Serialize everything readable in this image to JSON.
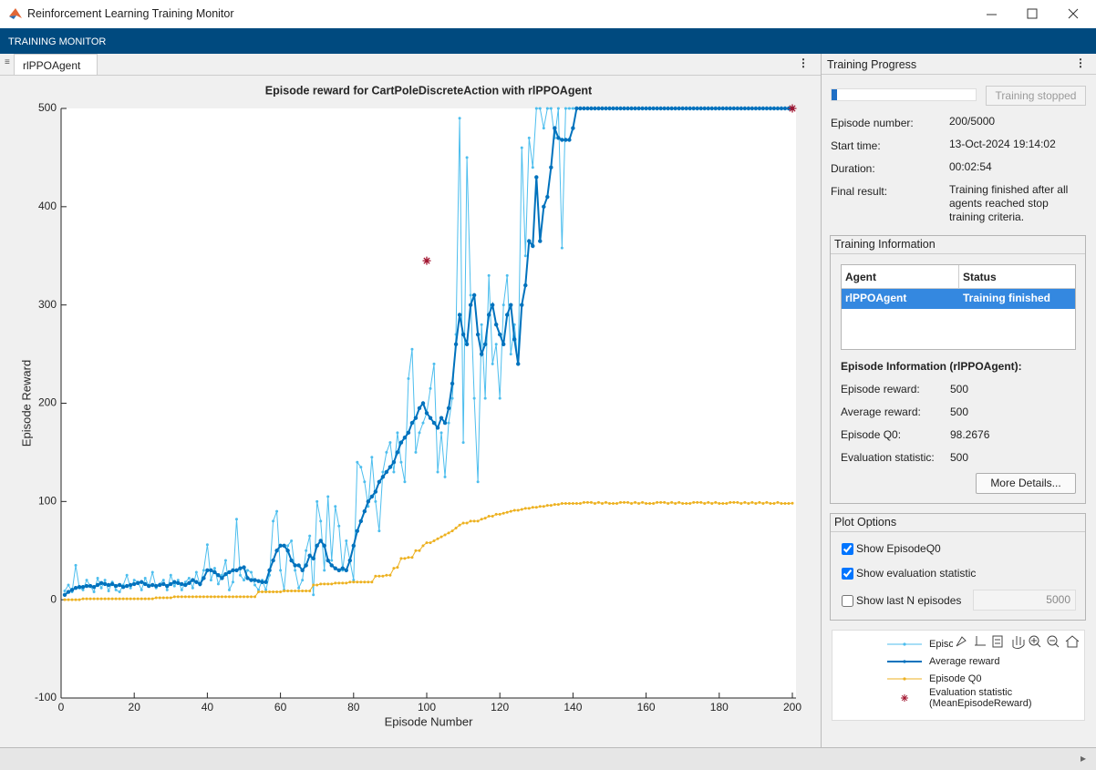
{
  "window": {
    "title": "Reinforcement Learning Training Monitor",
    "ribbon": "TRAINING MONITOR",
    "tab": "rlPPOAgent",
    "panel_title": "Training Progress",
    "status_button": "Training stopped",
    "progress": [
      {
        "label": "Episode number:",
        "value": "200/5000"
      },
      {
        "label": "Start time:",
        "value": "13-Oct-2024 19:14:02"
      },
      {
        "label": "Duration:",
        "value": "00:02:54"
      },
      {
        "label": "Final result:",
        "value": "Training finished after all agents reached stop training criteria."
      }
    ],
    "training_information": {
      "title": "Training Information",
      "columns": [
        "Agent",
        "Status"
      ],
      "rows": [
        [
          "rlPPOAgent",
          "Training finished"
        ]
      ]
    },
    "episode_information": {
      "title": "Episode Information (rlPPOAgent):",
      "fields": [
        {
          "label": "Episode reward:",
          "value": 500
        },
        {
          "label": "Average reward:",
          "value": 500
        },
        {
          "label": "Episode Q0:",
          "value": 98.2676
        },
        {
          "label": "Evaluation statistic:",
          "value": 500
        }
      ]
    },
    "more_details": "More Details...",
    "plot_options": {
      "title": "Plot Options",
      "options": [
        {
          "label": "Show EpisodeQ0",
          "checked": true
        },
        {
          "label": "Show evaluation statistic",
          "checked": true
        },
        {
          "label": "Show last N episodes",
          "checked": false
        }
      ],
      "last_n": 5000
    }
  },
  "chart_data": {
    "type": "line",
    "title": "Episode reward for CartPoleDiscreteAction with rlPPOAgent",
    "xlabel": "Episode Number",
    "ylabel": "Episode Reward",
    "xlim": [
      0,
      201
    ],
    "ylim": [
      -100,
      500
    ],
    "xticks": [
      0,
      20,
      40,
      60,
      80,
      100,
      120,
      140,
      160,
      180,
      200
    ],
    "yticks": [
      -100,
      0,
      100,
      200,
      300,
      400,
      500
    ],
    "x": [
      1,
      2,
      3,
      4,
      5,
      6,
      7,
      8,
      9,
      10,
      11,
      12,
      13,
      14,
      15,
      16,
      17,
      18,
      19,
      20,
      21,
      22,
      23,
      24,
      25,
      26,
      27,
      28,
      29,
      30,
      31,
      32,
      33,
      34,
      35,
      36,
      37,
      38,
      39,
      40,
      41,
      42,
      43,
      44,
      45,
      46,
      47,
      48,
      49,
      50,
      51,
      52,
      53,
      54,
      55,
      56,
      57,
      58,
      59,
      60,
      61,
      62,
      63,
      64,
      65,
      66,
      67,
      68,
      69,
      70,
      71,
      72,
      73,
      74,
      75,
      76,
      77,
      78,
      79,
      80,
      81,
      82,
      83,
      84,
      85,
      86,
      87,
      88,
      89,
      90,
      91,
      92,
      93,
      94,
      95,
      96,
      97,
      98,
      99,
      100,
      101,
      102,
      103,
      104,
      105,
      106,
      107,
      108,
      109,
      110,
      111,
      112,
      113,
      114,
      115,
      116,
      117,
      118,
      119,
      120,
      121,
      122,
      123,
      124,
      125,
      126,
      127,
      128,
      129,
      130,
      131,
      132,
      133,
      134,
      135,
      136,
      137,
      138,
      139,
      140,
      141,
      142,
      143,
      144,
      145,
      146,
      147,
      148,
      149,
      150,
      151,
      152,
      153,
      154,
      155,
      156,
      157,
      158,
      159,
      160,
      161,
      162,
      163,
      164,
      165,
      166,
      167,
      168,
      169,
      170,
      171,
      172,
      173,
      174,
      175,
      176,
      177,
      178,
      179,
      180,
      181,
      182,
      183,
      184,
      185,
      186,
      187,
      188,
      189,
      190,
      191,
      192,
      193,
      194,
      195,
      196,
      197,
      198,
      199,
      200
    ],
    "series": [
      {
        "name": "Episode reward",
        "color": "#4DBEEE",
        "line": true,
        "line_width": 1,
        "marker": "dot",
        "values": [
          9,
          15,
          8,
          35,
          12,
          10,
          20,
          14,
          8,
          22,
          12,
          20,
          9,
          18,
          10,
          8,
          15,
          25,
          12,
          20,
          18,
          10,
          22,
          14,
          28,
          12,
          16,
          20,
          10,
          25,
          14,
          20,
          10,
          18,
          22,
          12,
          28,
          15,
          30,
          56,
          20,
          32,
          16,
          25,
          40,
          10,
          18,
          82,
          25,
          20,
          30,
          28,
          15,
          10,
          20,
          10,
          25,
          80,
          90,
          30,
          10,
          55,
          60,
          30,
          12,
          20,
          50,
          65,
          5,
          100,
          80,
          30,
          105,
          40,
          95,
          75,
          30,
          60,
          40,
          20,
          140,
          135,
          120,
          95,
          145,
          100,
          70,
          130,
          150,
          160,
          130,
          170,
          140,
          120,
          225,
          255,
          150,
          170,
          180,
          190,
          215,
          240,
          130,
          170,
          125,
          180,
          205,
          270,
          490,
          160,
          450,
          310,
          205,
          120,
          280,
          205,
          330,
          240,
          260,
          205,
          300,
          330,
          250,
          280,
          240,
          460,
          350,
          470,
          440,
          500,
          500,
          480,
          500,
          500,
          470,
          500,
          358,
          500,
          500,
          500,
          500,
          500,
          500,
          500,
          500,
          500,
          500,
          500,
          500,
          500,
          500,
          500,
          500,
          500,
          500,
          500,
          500,
          500,
          500,
          500,
          500,
          500,
          500,
          500,
          500,
          500,
          500,
          500,
          500,
          500,
          500,
          500,
          500,
          500,
          500,
          500,
          500,
          500,
          500,
          500,
          500,
          500,
          500,
          500,
          500,
          500,
          500,
          500,
          500,
          500,
          500,
          500,
          500,
          500,
          500,
          500,
          500,
          500,
          500,
          500
        ]
      },
      {
        "name": "Average reward",
        "color": "#0072BD",
        "line": true,
        "line_width": 2,
        "marker": "dot",
        "values": [
          5,
          8,
          10,
          12,
          13,
          13,
          14,
          14,
          13,
          15,
          17,
          16,
          15,
          16,
          14,
          15,
          13,
          14,
          15,
          16,
          17,
          18,
          16,
          14,
          15,
          14,
          15,
          16,
          14,
          16,
          18,
          17,
          16,
          15,
          17,
          20,
          18,
          16,
          22,
          30,
          30,
          28,
          25,
          22,
          26,
          28,
          30,
          30,
          32,
          33,
          22,
          20,
          20,
          19,
          18,
          18,
          30,
          40,
          50,
          55,
          55,
          50,
          40,
          35,
          35,
          30,
          35,
          45,
          42,
          55,
          60,
          55,
          40,
          35,
          32,
          30,
          32,
          30,
          40,
          55,
          70,
          80,
          90,
          100,
          105,
          110,
          120,
          125,
          130,
          135,
          140,
          150,
          160,
          165,
          170,
          180,
          185,
          195,
          200,
          190,
          185,
          180,
          175,
          185,
          180,
          195,
          220,
          260,
          290,
          270,
          260,
          300,
          310,
          270,
          250,
          260,
          290,
          300,
          280,
          270,
          260,
          290,
          300,
          265,
          240,
          300,
          320,
          365,
          360,
          430,
          365,
          400,
          410,
          440,
          480,
          470,
          468,
          468,
          468,
          480,
          500,
          500,
          500,
          500,
          500,
          500,
          500,
          500,
          500,
          500,
          500,
          500,
          500,
          500,
          500,
          500,
          500,
          500,
          500,
          500,
          500,
          500,
          500,
          500,
          500,
          500,
          500,
          500,
          500,
          500,
          500,
          500,
          500,
          500,
          500,
          500,
          500,
          500,
          500,
          500,
          500,
          500,
          500,
          500,
          500,
          500,
          500,
          500,
          500,
          500,
          500,
          500,
          500,
          500,
          500,
          500,
          500,
          500,
          500,
          500
        ]
      },
      {
        "name": "Episode Q0",
        "color": "#EDB120",
        "line": true,
        "line_width": 1,
        "marker": "dot",
        "values": [
          0,
          0,
          0,
          0,
          0,
          1,
          1,
          1,
          1,
          1,
          1,
          1,
          1,
          1,
          1,
          1,
          1,
          1,
          1,
          1,
          1,
          1,
          1,
          1,
          1,
          2,
          2,
          2,
          2,
          2,
          3,
          3,
          3,
          3,
          3,
          3,
          3,
          3,
          3,
          3,
          3,
          3,
          3,
          3,
          3,
          3,
          3,
          3,
          3,
          3,
          3,
          3,
          3,
          8,
          8,
          8,
          8,
          8,
          8,
          8,
          9,
          9,
          9,
          9,
          9,
          9,
          9,
          9,
          15,
          15,
          16,
          16,
          16,
          16,
          17,
          17,
          17,
          17,
          18,
          18,
          18,
          18,
          18,
          18,
          18,
          24,
          24,
          24,
          25,
          25,
          32,
          33,
          42,
          42,
          43,
          43,
          50,
          50,
          55,
          58,
          58,
          60,
          62,
          64,
          66,
          68,
          70,
          73,
          76,
          78,
          78,
          80,
          80,
          80,
          82,
          83,
          85,
          85,
          87,
          87,
          88,
          89,
          90,
          91,
          91,
          92,
          93,
          93,
          94,
          94,
          95,
          95,
          96,
          96,
          97,
          97,
          98,
          98,
          98,
          98,
          98,
          98,
          99,
          99,
          99,
          98,
          99,
          98,
          99,
          98,
          98,
          98,
          99,
          99,
          99,
          98,
          99,
          98,
          99,
          98,
          98,
          98,
          99,
          99,
          99,
          98,
          99,
          98,
          99,
          98,
          98,
          98,
          99,
          99,
          99,
          98,
          99,
          98,
          99,
          98,
          98,
          98,
          99,
          99,
          99,
          98,
          99,
          98,
          99,
          98,
          99,
          98,
          99,
          98,
          98,
          99,
          98,
          98,
          98,
          98.2676
        ]
      },
      {
        "name": "Evaluation statistic (MeanEpisodeReward)",
        "color": "#A2142F",
        "line": false,
        "line_width": 1,
        "marker": "asterisk",
        "x": [
          100,
          200
        ],
        "values": [
          345,
          500
        ]
      }
    ]
  }
}
